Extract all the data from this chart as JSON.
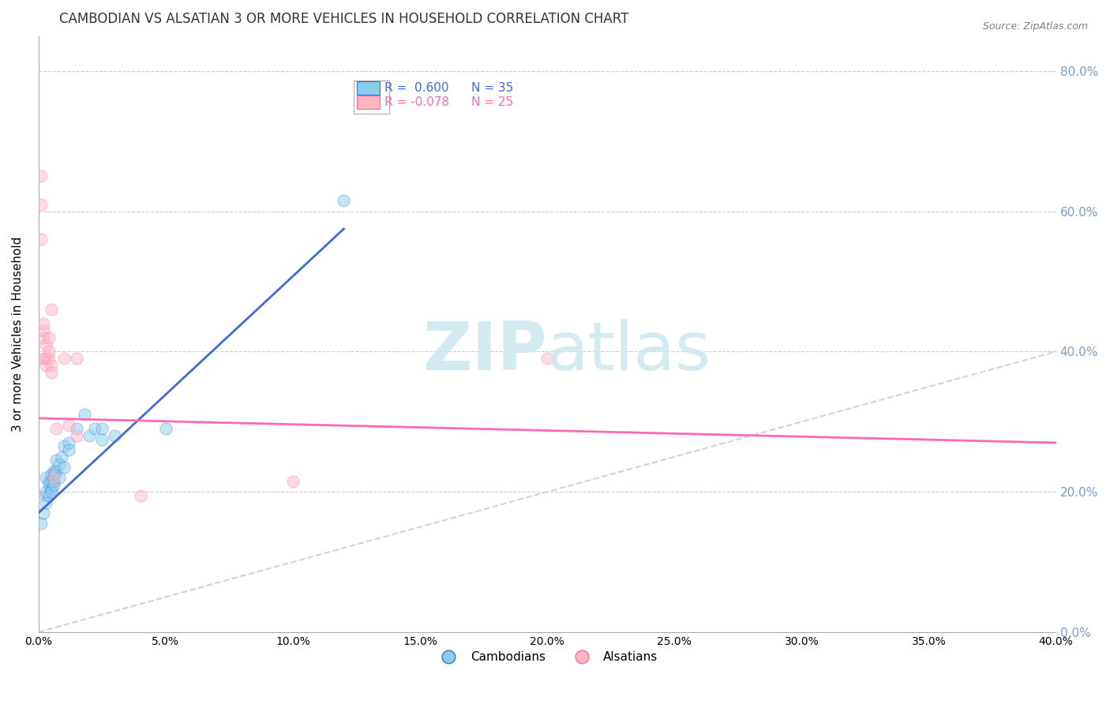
{
  "title": "CAMBODIAN VS ALSATIAN 3 OR MORE VEHICLES IN HOUSEHOLD CORRELATION CHART",
  "source_text": "Source: ZipAtlas.com",
  "xlabel": "",
  "ylabel": "3 or more Vehicles in Household",
  "xlim": [
    0.0,
    0.4
  ],
  "ylim": [
    0.0,
    0.85
  ],
  "xticks": [
    0.0,
    0.05,
    0.1,
    0.15,
    0.2,
    0.25,
    0.3,
    0.35,
    0.4
  ],
  "yticks": [
    0.0,
    0.2,
    0.4,
    0.6,
    0.8
  ],
  "legend_r1": "R =  0.600",
  "legend_n1": "N = 35",
  "legend_r2": "R = -0.078",
  "legend_n2": "N = 25",
  "cambodian_color": "#87CEEB",
  "alsatian_color": "#FFB6C1",
  "cambodian_line_color": "#4169E1",
  "alsatian_line_color": "#FF69B4",
  "watermark_color": "#D0E8F0",
  "title_color": "#333333",
  "axis_color": "#7B9BD4",
  "grid_color": "#CCCCCC",
  "right_tick_color": "#7B9BD4",
  "cambodian_scatter": [
    [
      0.001,
      0.155
    ],
    [
      0.002,
      0.17
    ],
    [
      0.003,
      0.195
    ],
    [
      0.003,
      0.22
    ],
    [
      0.003,
      0.185
    ],
    [
      0.003,
      0.2
    ],
    [
      0.004,
      0.21
    ],
    [
      0.004,
      0.215
    ],
    [
      0.004,
      0.195
    ],
    [
      0.005,
      0.205
    ],
    [
      0.005,
      0.215
    ],
    [
      0.005,
      0.225
    ],
    [
      0.005,
      0.2
    ],
    [
      0.006,
      0.215
    ],
    [
      0.006,
      0.225
    ],
    [
      0.006,
      0.23
    ],
    [
      0.006,
      0.21
    ],
    [
      0.007,
      0.245
    ],
    [
      0.007,
      0.23
    ],
    [
      0.008,
      0.24
    ],
    [
      0.008,
      0.22
    ],
    [
      0.009,
      0.25
    ],
    [
      0.01,
      0.265
    ],
    [
      0.01,
      0.235
    ],
    [
      0.012,
      0.27
    ],
    [
      0.012,
      0.26
    ],
    [
      0.015,
      0.29
    ],
    [
      0.018,
      0.31
    ],
    [
      0.02,
      0.28
    ],
    [
      0.022,
      0.29
    ],
    [
      0.025,
      0.29
    ],
    [
      0.025,
      0.275
    ],
    [
      0.03,
      0.28
    ],
    [
      0.05,
      0.29
    ],
    [
      0.12,
      0.615
    ]
  ],
  "alsatian_scatter": [
    [
      0.001,
      0.56
    ],
    [
      0.001,
      0.61
    ],
    [
      0.001,
      0.65
    ],
    [
      0.002,
      0.39
    ],
    [
      0.002,
      0.42
    ],
    [
      0.002,
      0.43
    ],
    [
      0.002,
      0.44
    ],
    [
      0.003,
      0.39
    ],
    [
      0.003,
      0.38
    ],
    [
      0.003,
      0.41
    ],
    [
      0.004,
      0.39
    ],
    [
      0.004,
      0.42
    ],
    [
      0.004,
      0.4
    ],
    [
      0.005,
      0.38
    ],
    [
      0.005,
      0.46
    ],
    [
      0.005,
      0.37
    ],
    [
      0.006,
      0.22
    ],
    [
      0.007,
      0.29
    ],
    [
      0.01,
      0.39
    ],
    [
      0.012,
      0.295
    ],
    [
      0.015,
      0.39
    ],
    [
      0.015,
      0.28
    ],
    [
      0.04,
      0.195
    ],
    [
      0.1,
      0.215
    ],
    [
      0.2,
      0.39
    ]
  ],
  "cambodian_line": [
    [
      0.0,
      0.17
    ],
    [
      0.12,
      0.575
    ]
  ],
  "alsatian_line": [
    [
      0.0,
      0.305
    ],
    [
      0.4,
      0.27
    ]
  ],
  "ref_line": [
    [
      0.0,
      0.0
    ],
    [
      0.85,
      0.85
    ]
  ],
  "dot_size": 120,
  "dot_alpha": 0.5,
  "figsize": [
    14.06,
    8.92
  ],
  "dpi": 100
}
